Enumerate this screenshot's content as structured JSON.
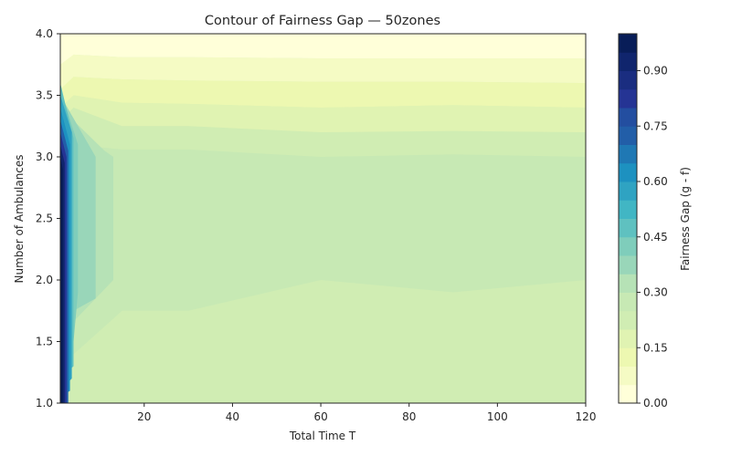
{
  "chart_data": {
    "type": "contour",
    "title": "Contour of Fairness Gap — 50zones",
    "xlabel": "Total Time T",
    "ylabel": "Number of Ambulances",
    "colorbar_label": "Fairness Gap (g - f)",
    "xlim": [
      1,
      120
    ],
    "ylim": [
      1,
      4
    ],
    "clim": [
      0,
      1
    ],
    "x_ticks": [
      20,
      40,
      60,
      80,
      100,
      120
    ],
    "x_tick_labels": [
      "20",
      "40",
      "60",
      "80",
      "100",
      "120"
    ],
    "y_ticks": [
      1.0,
      1.5,
      2.0,
      2.5,
      3.0,
      3.5,
      4.0
    ],
    "y_tick_labels": [
      "1.0",
      "1.5",
      "2.0",
      "2.5",
      "3.0",
      "3.5",
      "4.0"
    ],
    "colorbar_ticks": [
      0.0,
      0.15,
      0.3,
      0.45,
      0.6,
      0.75,
      0.9
    ],
    "colorbar_tick_labels": [
      "0.00",
      "0.15",
      "0.30",
      "0.45",
      "0.60",
      "0.75",
      "0.90"
    ],
    "levels": [
      0,
      0.05,
      0.1,
      0.15,
      0.2,
      0.25,
      0.3,
      0.35,
      0.4,
      0.45,
      0.5,
      0.55,
      0.6,
      0.65,
      0.7,
      0.75,
      0.8,
      0.85,
      0.9,
      0.95,
      1.0
    ],
    "level_colors": [
      "#ffffd9",
      "#f5fbc4",
      "#edf8b1",
      "#e0f3b2",
      "#d0edb3",
      "#c7e9b4",
      "#b6e2b6",
      "#99d6b9",
      "#7fcdbb",
      "#5fc1c0",
      "#41b6c4",
      "#2fa3c2",
      "#1d91c0",
      "#1f78b4",
      "#225ea8",
      "#234ea0",
      "#253494",
      "#1a2d80",
      "#10256d",
      "#081d58"
    ],
    "colormap": "YlGnBu",
    "regions": [
      {
        "level": 0.22,
        "desc": "lower band",
        "y_range": [
          1.0,
          1.85
        ]
      },
      {
        "level": 0.28,
        "desc": "main plateau",
        "y_range": [
          1.75,
          3.05
        ]
      },
      {
        "level": 0.22,
        "desc": "band",
        "y_range": [
          3.05,
          3.25
        ]
      },
      {
        "level": 0.17,
        "desc": "band",
        "y_range": [
          3.25,
          3.45
        ]
      },
      {
        "level": 0.12,
        "desc": "band",
        "y_range": [
          3.45,
          3.65
        ]
      },
      {
        "level": 0.07,
        "desc": "band",
        "y_range": [
          3.65,
          3.85
        ]
      },
      {
        "level": 0.02,
        "desc": "top band",
        "y_range": [
          3.85,
          4.0
        ]
      },
      {
        "level": 0.95,
        "desc": "high gap along T near 1",
        "x_range": [
          1,
          3
        ]
      }
    ]
  }
}
